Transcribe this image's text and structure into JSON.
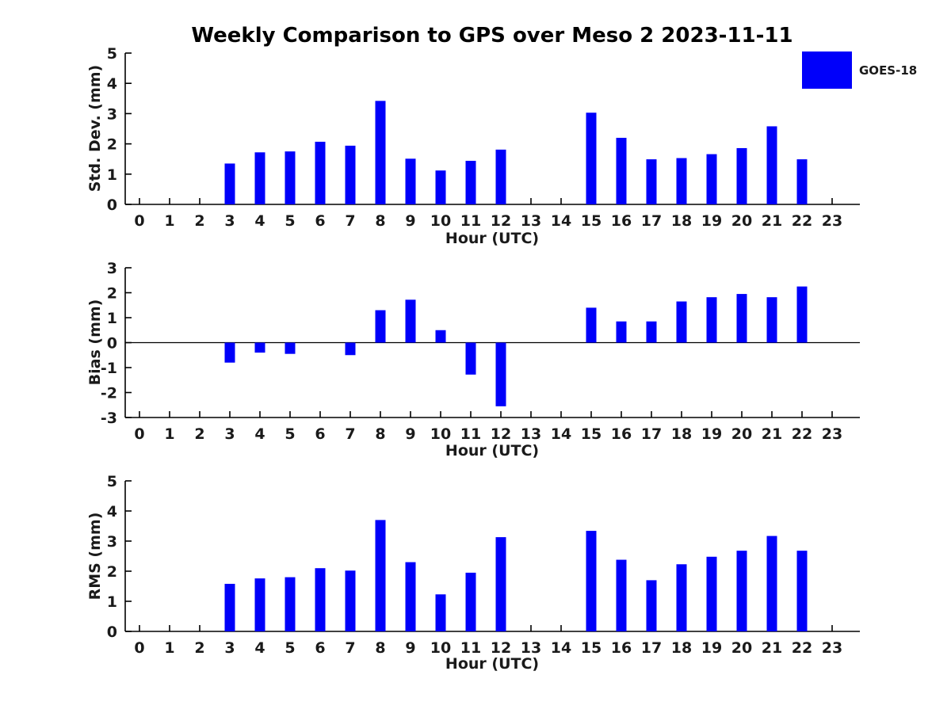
{
  "title": "Weekly Comparison to GPS over Meso 2 2023-11-11",
  "legend": {
    "label": "GOES-18",
    "color": "#0000fa",
    "position": "top-right"
  },
  "colors": {
    "bar": "#0000fa",
    "axis": "#000000",
    "text": "#1a1a1a",
    "background": "#ffffff"
  },
  "chart_data": [
    {
      "type": "bar",
      "series_name": "GOES-18",
      "ylabel": "Std. Dev. (mm)",
      "xlabel": "Hour (UTC)",
      "x": [
        0,
        1,
        2,
        3,
        4,
        5,
        6,
        7,
        8,
        9,
        10,
        11,
        12,
        13,
        14,
        15,
        16,
        17,
        18,
        19,
        20,
        21,
        22,
        23
      ],
      "values": [
        0,
        0,
        0,
        1.35,
        1.72,
        1.75,
        2.07,
        1.94,
        3.42,
        1.51,
        1.12,
        1.44,
        1.81,
        0,
        0,
        3.03,
        2.2,
        1.49,
        1.53,
        1.66,
        1.86,
        2.58,
        1.49,
        0
      ],
      "ylim": [
        0,
        5
      ],
      "yticks": [
        0,
        1,
        2,
        3,
        4,
        5
      ],
      "grid": false
    },
    {
      "type": "bar",
      "series_name": "GOES-18",
      "ylabel": "Bias (mm)",
      "xlabel": "Hour (UTC)",
      "x": [
        0,
        1,
        2,
        3,
        4,
        5,
        6,
        7,
        8,
        9,
        10,
        11,
        12,
        13,
        14,
        15,
        16,
        17,
        18,
        19,
        20,
        21,
        22,
        23
      ],
      "values": [
        0,
        0,
        0,
        -0.8,
        -0.4,
        -0.45,
        0,
        -0.5,
        1.3,
        1.72,
        0.5,
        -1.28,
        -2.55,
        0,
        0,
        1.4,
        0.85,
        0.85,
        1.65,
        1.82,
        1.95,
        1.82,
        2.25,
        0
      ],
      "ylim": [
        -3,
        3
      ],
      "yticks": [
        -3,
        -2,
        -1,
        0,
        1,
        2,
        3
      ],
      "zero_line": true,
      "grid": false
    },
    {
      "type": "bar",
      "series_name": "GOES-18",
      "ylabel": "RMS (mm)",
      "xlabel": "Hour (UTC)",
      "x": [
        0,
        1,
        2,
        3,
        4,
        5,
        6,
        7,
        8,
        9,
        10,
        11,
        12,
        13,
        14,
        15,
        16,
        17,
        18,
        19,
        20,
        21,
        22,
        23
      ],
      "values": [
        0,
        0,
        0,
        1.58,
        1.76,
        1.8,
        2.1,
        2.02,
        3.7,
        2.3,
        1.23,
        1.95,
        3.13,
        0,
        0,
        3.34,
        2.38,
        1.7,
        2.23,
        2.48,
        2.68,
        3.17,
        2.68,
        0
      ],
      "ylim": [
        0,
        5
      ],
      "yticks": [
        0,
        1,
        2,
        3,
        4,
        5
      ],
      "grid": false
    }
  ]
}
